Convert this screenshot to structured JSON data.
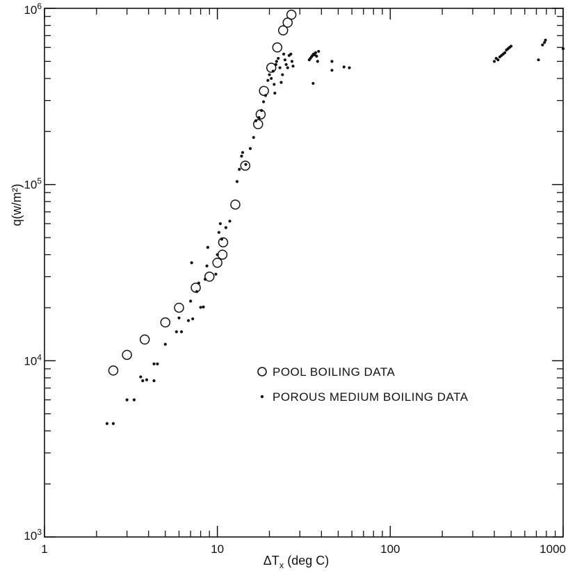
{
  "chart_data": {
    "type": "scatter",
    "title": "",
    "xlabel": "ΔTx (deg C)",
    "ylabel": "q(w/m²)",
    "xscale": "log",
    "yscale": "log",
    "xlim": [
      1,
      1000
    ],
    "ylim": [
      1000,
      1000000
    ],
    "x_ticks": [
      {
        "value": 1,
        "label": "1"
      },
      {
        "value": 10,
        "label": "10"
      },
      {
        "value": 100,
        "label": "100"
      },
      {
        "value": 1000,
        "label": "1000"
      }
    ],
    "y_ticks": [
      {
        "value": 1000,
        "base": "10",
        "exp": "3"
      },
      {
        "value": 10000,
        "base": "10",
        "exp": "4"
      },
      {
        "value": 100000,
        "base": "10",
        "exp": "5"
      },
      {
        "value": 1000000,
        "base": "10",
        "exp": "6"
      }
    ],
    "legend_position": "center-right",
    "grid": false,
    "series": [
      {
        "name": "POOL BOILING DATA",
        "marker": "open-circle",
        "points": [
          [
            2.5,
            8800
          ],
          [
            3.0,
            10800
          ],
          [
            3.8,
            13200
          ],
          [
            5.0,
            16500
          ],
          [
            6.0,
            20000
          ],
          [
            7.5,
            26000
          ],
          [
            9.0,
            30000
          ],
          [
            10.0,
            36000
          ],
          [
            10.7,
            40000
          ],
          [
            10.8,
            47000
          ],
          [
            12.7,
            77000
          ],
          [
            14.5,
            128000
          ],
          [
            17.2,
            220000
          ],
          [
            17.8,
            250000
          ],
          [
            18.6,
            340000
          ],
          [
            20.5,
            460000
          ],
          [
            22.2,
            600000
          ],
          [
            24.0,
            750000
          ],
          [
            25.5,
            830000
          ],
          [
            26.8,
            920000
          ]
        ]
      },
      {
        "name": "POROUS MEDIUM BOILING DATA",
        "marker": "dot",
        "points": [
          [
            2.3,
            4400
          ],
          [
            2.5,
            4400
          ],
          [
            3.0,
            6000
          ],
          [
            3.3,
            6000
          ],
          [
            3.6,
            8100
          ],
          [
            3.7,
            7700
          ],
          [
            3.9,
            7800
          ],
          [
            4.3,
            7700
          ],
          [
            4.3,
            9600
          ],
          [
            4.5,
            9600
          ],
          [
            5.0,
            12400
          ],
          [
            5.8,
            14600
          ],
          [
            6.2,
            14600
          ],
          [
            6.0,
            17500
          ],
          [
            6.8,
            16900
          ],
          [
            7.0,
            21800
          ],
          [
            7.2,
            17300
          ],
          [
            7.1,
            36000
          ],
          [
            7.6,
            24700
          ],
          [
            7.8,
            27600
          ],
          [
            8.0,
            20100
          ],
          [
            8.3,
            20200
          ],
          [
            8.5,
            29000
          ],
          [
            8.7,
            34500
          ],
          [
            8.8,
            44000
          ],
          [
            9.8,
            31000
          ],
          [
            10.0,
            40000
          ],
          [
            10.2,
            53500
          ],
          [
            10.4,
            60000
          ],
          [
            10.6,
            49000
          ],
          [
            11.2,
            57000
          ],
          [
            11.8,
            62000
          ],
          [
            13.0,
            104000
          ],
          [
            13.4,
            122000
          ],
          [
            13.8,
            145000
          ],
          [
            14.0,
            152000
          ],
          [
            14.6,
            130000
          ],
          [
            15.5,
            160000
          ],
          [
            16.2,
            185000
          ],
          [
            16.7,
            230000
          ],
          [
            17.4,
            240000
          ],
          [
            18.0,
            263000
          ],
          [
            18.5,
            295000
          ],
          [
            19.0,
            320000
          ],
          [
            19.6,
            390000
          ],
          [
            20.0,
            420000
          ],
          [
            20.5,
            400000
          ],
          [
            21.0,
            440000
          ],
          [
            21.3,
            370000
          ],
          [
            21.5,
            330000
          ],
          [
            21.8,
            480000
          ],
          [
            22.0,
            500000
          ],
          [
            22.5,
            520000
          ],
          [
            23.0,
            460000
          ],
          [
            23.4,
            380000
          ],
          [
            23.8,
            420000
          ],
          [
            24.2,
            550000
          ],
          [
            24.6,
            510000
          ],
          [
            25.0,
            480000
          ],
          [
            25.5,
            460000
          ],
          [
            26.0,
            540000
          ],
          [
            26.6,
            550000
          ],
          [
            27.0,
            500000
          ],
          [
            27.4,
            470000
          ],
          [
            34.0,
            510000
          ],
          [
            34.5,
            520000
          ],
          [
            35.0,
            530000
          ],
          [
            35.5,
            540000
          ],
          [
            36.0,
            550000
          ],
          [
            36.5,
            545000
          ],
          [
            37.0,
            560000
          ],
          [
            37.5,
            535000
          ],
          [
            38.5,
            570000
          ],
          [
            38.0,
            500000
          ],
          [
            35.8,
            375000
          ],
          [
            46.0,
            500000
          ],
          [
            46.0,
            445000
          ],
          [
            54.0,
            465000
          ],
          [
            58.0,
            460000
          ],
          [
            400.0,
            500000
          ],
          [
            410.0,
            520000
          ],
          [
            420.0,
            510000
          ],
          [
            430.0,
            530000
          ],
          [
            440.0,
            540000
          ],
          [
            450.0,
            550000
          ],
          [
            460.0,
            560000
          ],
          [
            470.0,
            580000
          ],
          [
            480.0,
            590000
          ],
          [
            490.0,
            600000
          ],
          [
            500.0,
            610000
          ],
          [
            720.0,
            510000
          ],
          [
            760.0,
            620000
          ],
          [
            780.0,
            640000
          ],
          [
            790.0,
            660000
          ],
          [
            1000.0,
            590000
          ]
        ]
      }
    ]
  }
}
